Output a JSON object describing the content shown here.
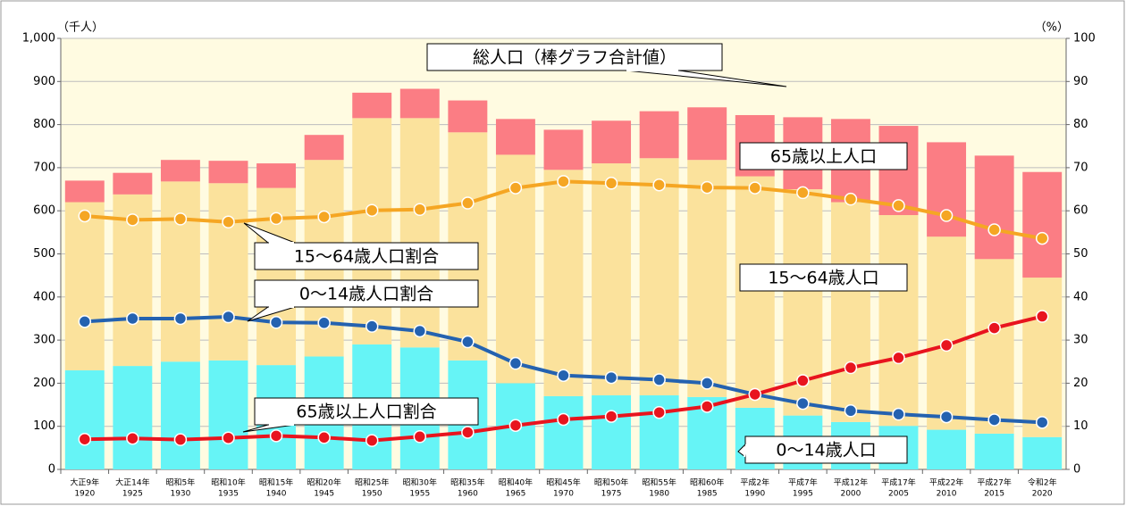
{
  "chart_data": {
    "type": "bar_line",
    "y_unit_label": "（千人）",
    "y2_unit_label": "（%）",
    "categories": [
      [
        "大正9年",
        "1920"
      ],
      [
        "大正14年",
        "1925"
      ],
      [
        "昭和5年",
        "1930"
      ],
      [
        "昭和10年",
        "1935"
      ],
      [
        "昭和15年",
        "1940"
      ],
      [
        "昭和20年",
        "1945"
      ],
      [
        "昭和25年",
        "1950"
      ],
      [
        "昭和30年",
        "1955"
      ],
      [
        "昭和35年",
        "1960"
      ],
      [
        "昭和40年",
        "1965"
      ],
      [
        "昭和45年",
        "1970"
      ],
      [
        "昭和50年",
        "1975"
      ],
      [
        "昭和55年",
        "1980"
      ],
      [
        "昭和60年",
        "1985"
      ],
      [
        "平成2年",
        "1990"
      ],
      [
        "平成7年",
        "1995"
      ],
      [
        "平成12年",
        "2000"
      ],
      [
        "平成17年",
        "2005"
      ],
      [
        "平成22年",
        "2010"
      ],
      [
        "平成27年",
        "2015"
      ],
      [
        "令和2年",
        "2020"
      ]
    ],
    "bar_series": [
      {
        "name": "0～14歳人口",
        "color": "#66f4f6",
        "values": [
          230,
          240,
          250,
          253,
          242,
          262,
          290,
          283,
          253,
          200,
          170,
          172,
          172,
          168,
          143,
          125,
          110,
          101,
          92,
          83,
          75
        ]
      },
      {
        "name": "15～64歳人口",
        "color": "#fbe29c",
        "values": [
          390,
          398,
          418,
          411,
          411,
          456,
          525,
          532,
          529,
          530,
          525,
          538,
          550,
          550,
          537,
          525,
          510,
          489,
          448,
          405,
          370
        ]
      },
      {
        "name": "65歳以上人口",
        "color": "#fb7d84",
        "values": [
          50,
          50,
          50,
          52,
          57,
          58,
          59,
          68,
          74,
          83,
          93,
          99,
          109,
          122,
          142,
          167,
          193,
          207,
          219,
          240,
          245
        ]
      }
    ],
    "line_series": [
      {
        "name": "15～64歳人口割合",
        "color": "#f5a623",
        "axis": "y2",
        "values": [
          58.8,
          57.9,
          58.1,
          57.4,
          58.2,
          58.6,
          60.1,
          60.3,
          61.8,
          65.3,
          66.8,
          66.4,
          66.0,
          65.4,
          65.3,
          64.2,
          62.7,
          61.2,
          58.9,
          55.6,
          53.6
        ]
      },
      {
        "name": "0～14歳人口割合",
        "color": "#2462b0",
        "axis": "y2",
        "values": [
          34.3,
          35.0,
          35.0,
          35.4,
          34.1,
          34.0,
          33.2,
          32.1,
          29.6,
          24.6,
          21.8,
          21.3,
          20.8,
          20.0,
          17.4,
          15.3,
          13.6,
          12.8,
          12.2,
          11.5,
          10.9
        ]
      },
      {
        "name": "65歳以上人口割合",
        "color": "#e8141e",
        "axis": "y2",
        "values": [
          7.0,
          7.2,
          6.9,
          7.3,
          7.8,
          7.4,
          6.7,
          7.6,
          8.6,
          10.2,
          11.6,
          12.3,
          13.2,
          14.6,
          17.4,
          20.6,
          23.6,
          25.9,
          28.8,
          32.8,
          35.5
        ]
      }
    ],
    "annotations": [
      "総人口（棒グラフ合計値）",
      "65歳以上人口",
      "15～64歳人口割合",
      "15～64歳人口",
      "0～14歳人口割合",
      "65歳以上人口割合",
      "0～14歳人口"
    ],
    "ylim": [
      0,
      1000
    ],
    "yticks": [
      0,
      100,
      200,
      300,
      400,
      500,
      600,
      700,
      800,
      900,
      {
        "value": 1000,
        "label": "1,000"
      }
    ],
    "y2lim": [
      0,
      100
    ],
    "y2ticks": [
      0,
      10,
      20,
      30,
      40,
      50,
      60,
      70,
      80,
      90,
      100
    ],
    "grid": true
  }
}
